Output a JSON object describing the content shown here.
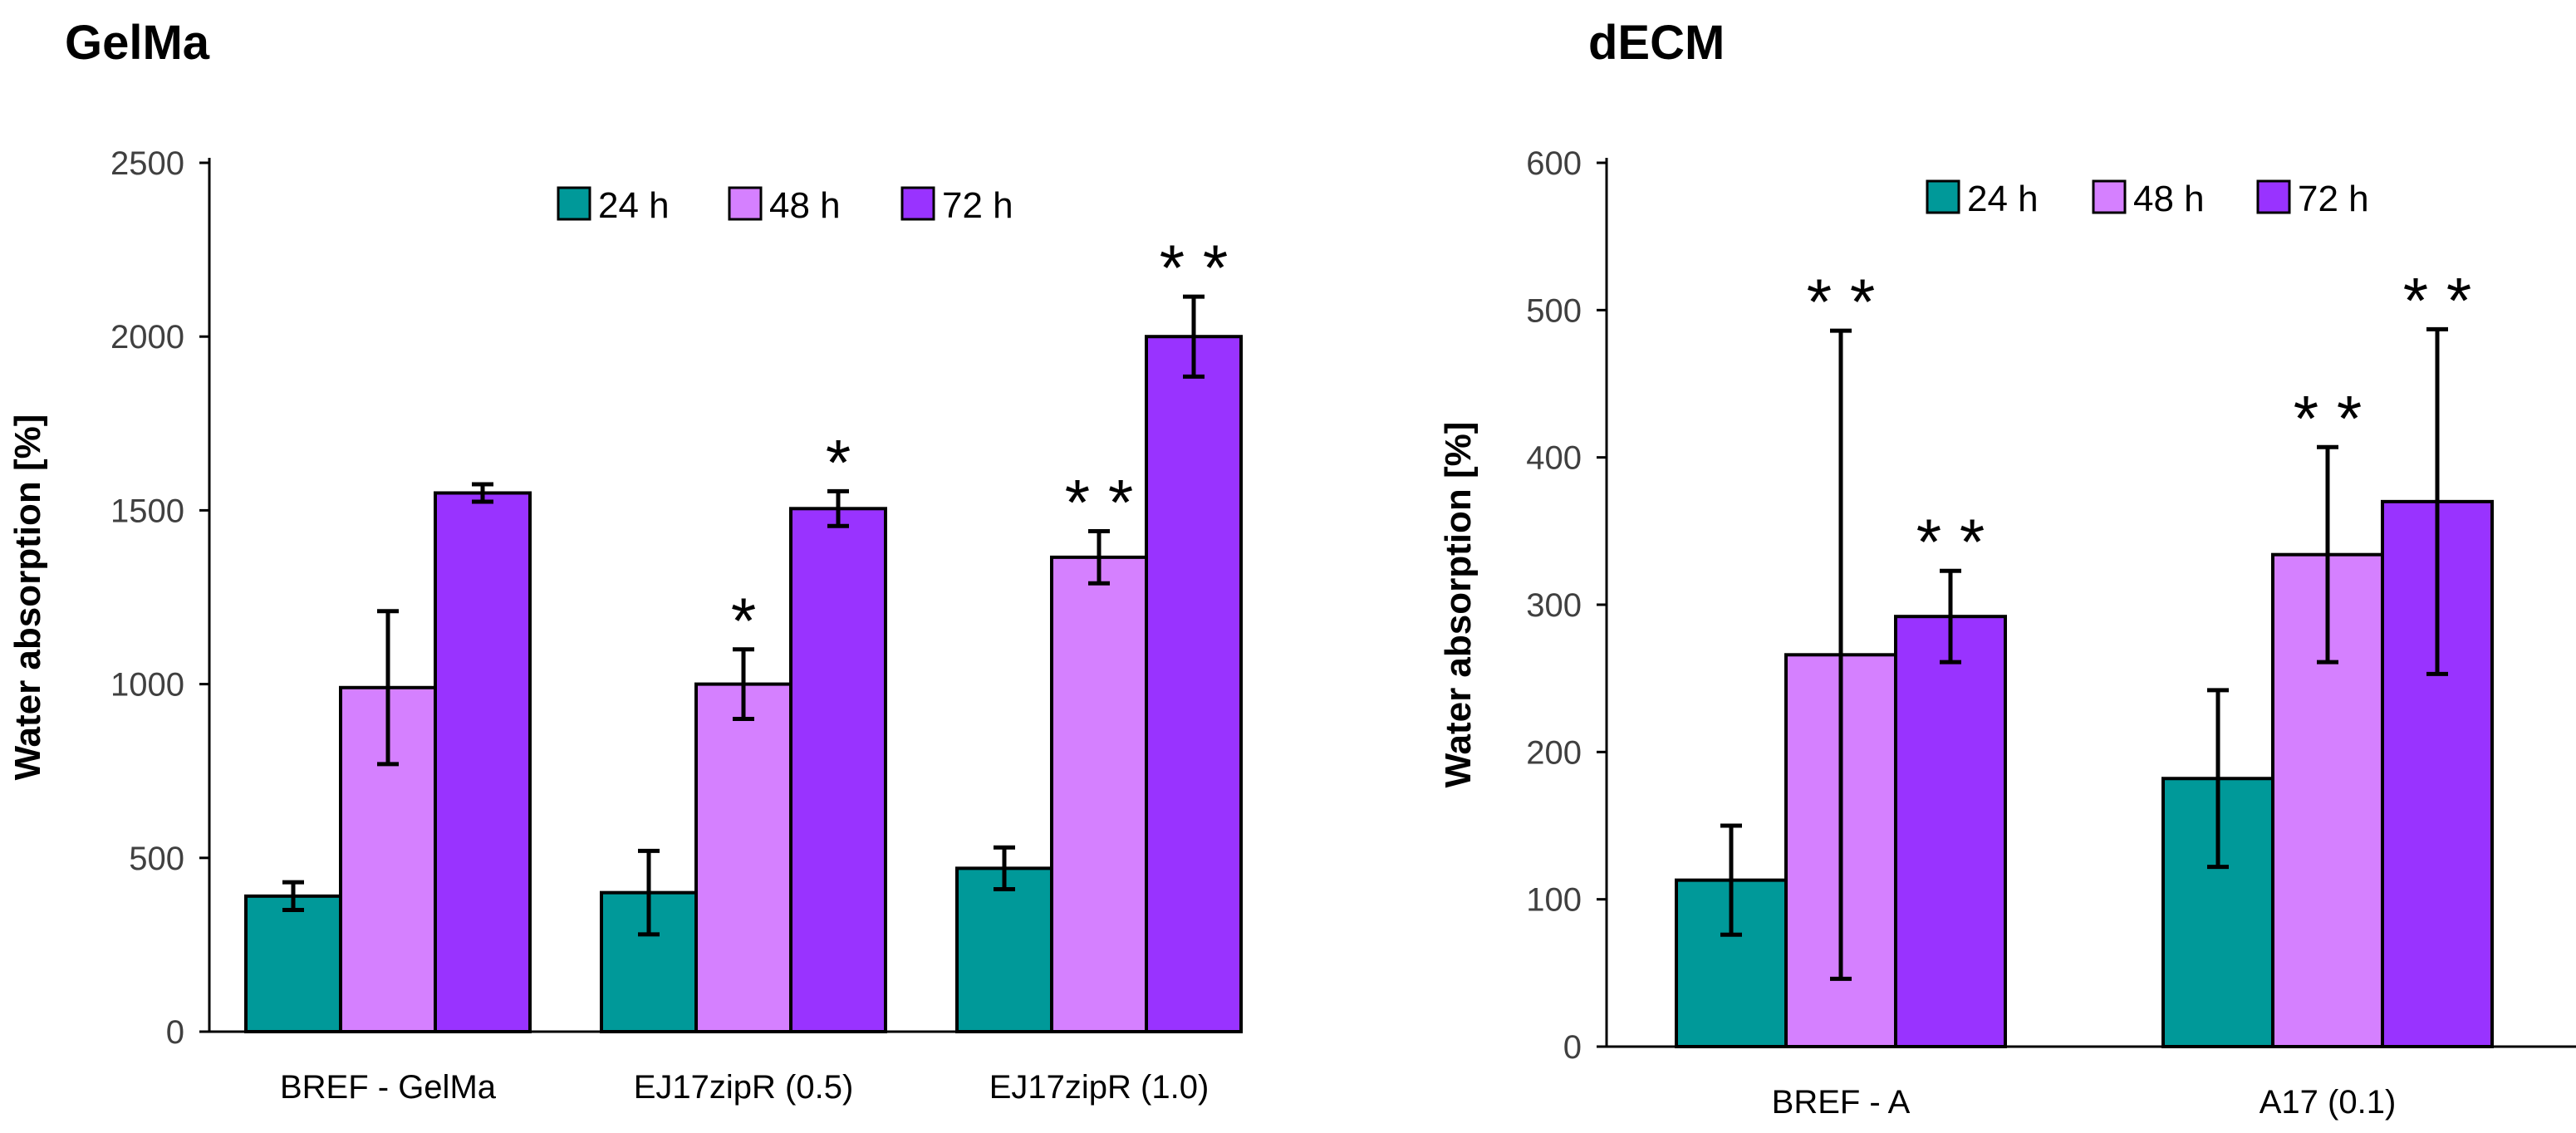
{
  "panels": {
    "left": {
      "title": "GelMa"
    },
    "right": {
      "title": "dECM"
    }
  },
  "chart_data": [
    {
      "type": "bar",
      "title": "GelMa",
      "xlabel": "",
      "ylabel": "Water absorption [%]",
      "ylim": [
        0,
        2500
      ],
      "yticks": [
        0,
        500,
        1000,
        1500,
        2000,
        2500
      ],
      "grid": false,
      "legend_position": "top",
      "categories": [
        "BREF - GelMa",
        "EJ17zipR (0.5)",
        "EJ17zipR (1.0)"
      ],
      "series": [
        {
          "name": "24 h",
          "color": "#009999",
          "values": [
            390,
            400,
            470
          ],
          "errors": [
            40,
            120,
            60
          ],
          "significance": [
            "",
            "",
            ""
          ]
        },
        {
          "name": "48 h",
          "color": "#D580FF",
          "values": [
            990,
            1000,
            1365
          ],
          "errors": [
            220,
            100,
            75
          ],
          "significance": [
            "",
            "*",
            "**"
          ]
        },
        {
          "name": "72 h",
          "color": "#9933FF",
          "values": [
            1550,
            1505,
            2000
          ],
          "errors": [
            25,
            50,
            115
          ],
          "significance": [
            "",
            "*",
            "**"
          ]
        }
      ]
    },
    {
      "type": "bar",
      "title": "dECM",
      "xlabel": "",
      "ylabel": "Water absorption [%]",
      "ylim": [
        0,
        600
      ],
      "yticks": [
        0,
        100,
        200,
        300,
        400,
        500,
        600
      ],
      "grid": false,
      "legend_position": "top",
      "categories": [
        "BREF - A",
        "A17 (0.1)"
      ],
      "series": [
        {
          "name": "24 h",
          "color": "#009999",
          "values": [
            113,
            182
          ],
          "errors": [
            37,
            60
          ],
          "significance": [
            "",
            ""
          ]
        },
        {
          "name": "48 h",
          "color": "#D580FF",
          "values": [
            266,
            334
          ],
          "errors": [
            220,
            73
          ],
          "significance": [
            "**",
            "**"
          ]
        },
        {
          "name": "72 h",
          "color": "#9933FF",
          "values": [
            292,
            370
          ],
          "errors": [
            31,
            117
          ],
          "significance": [
            "**",
            "**"
          ]
        }
      ]
    }
  ]
}
